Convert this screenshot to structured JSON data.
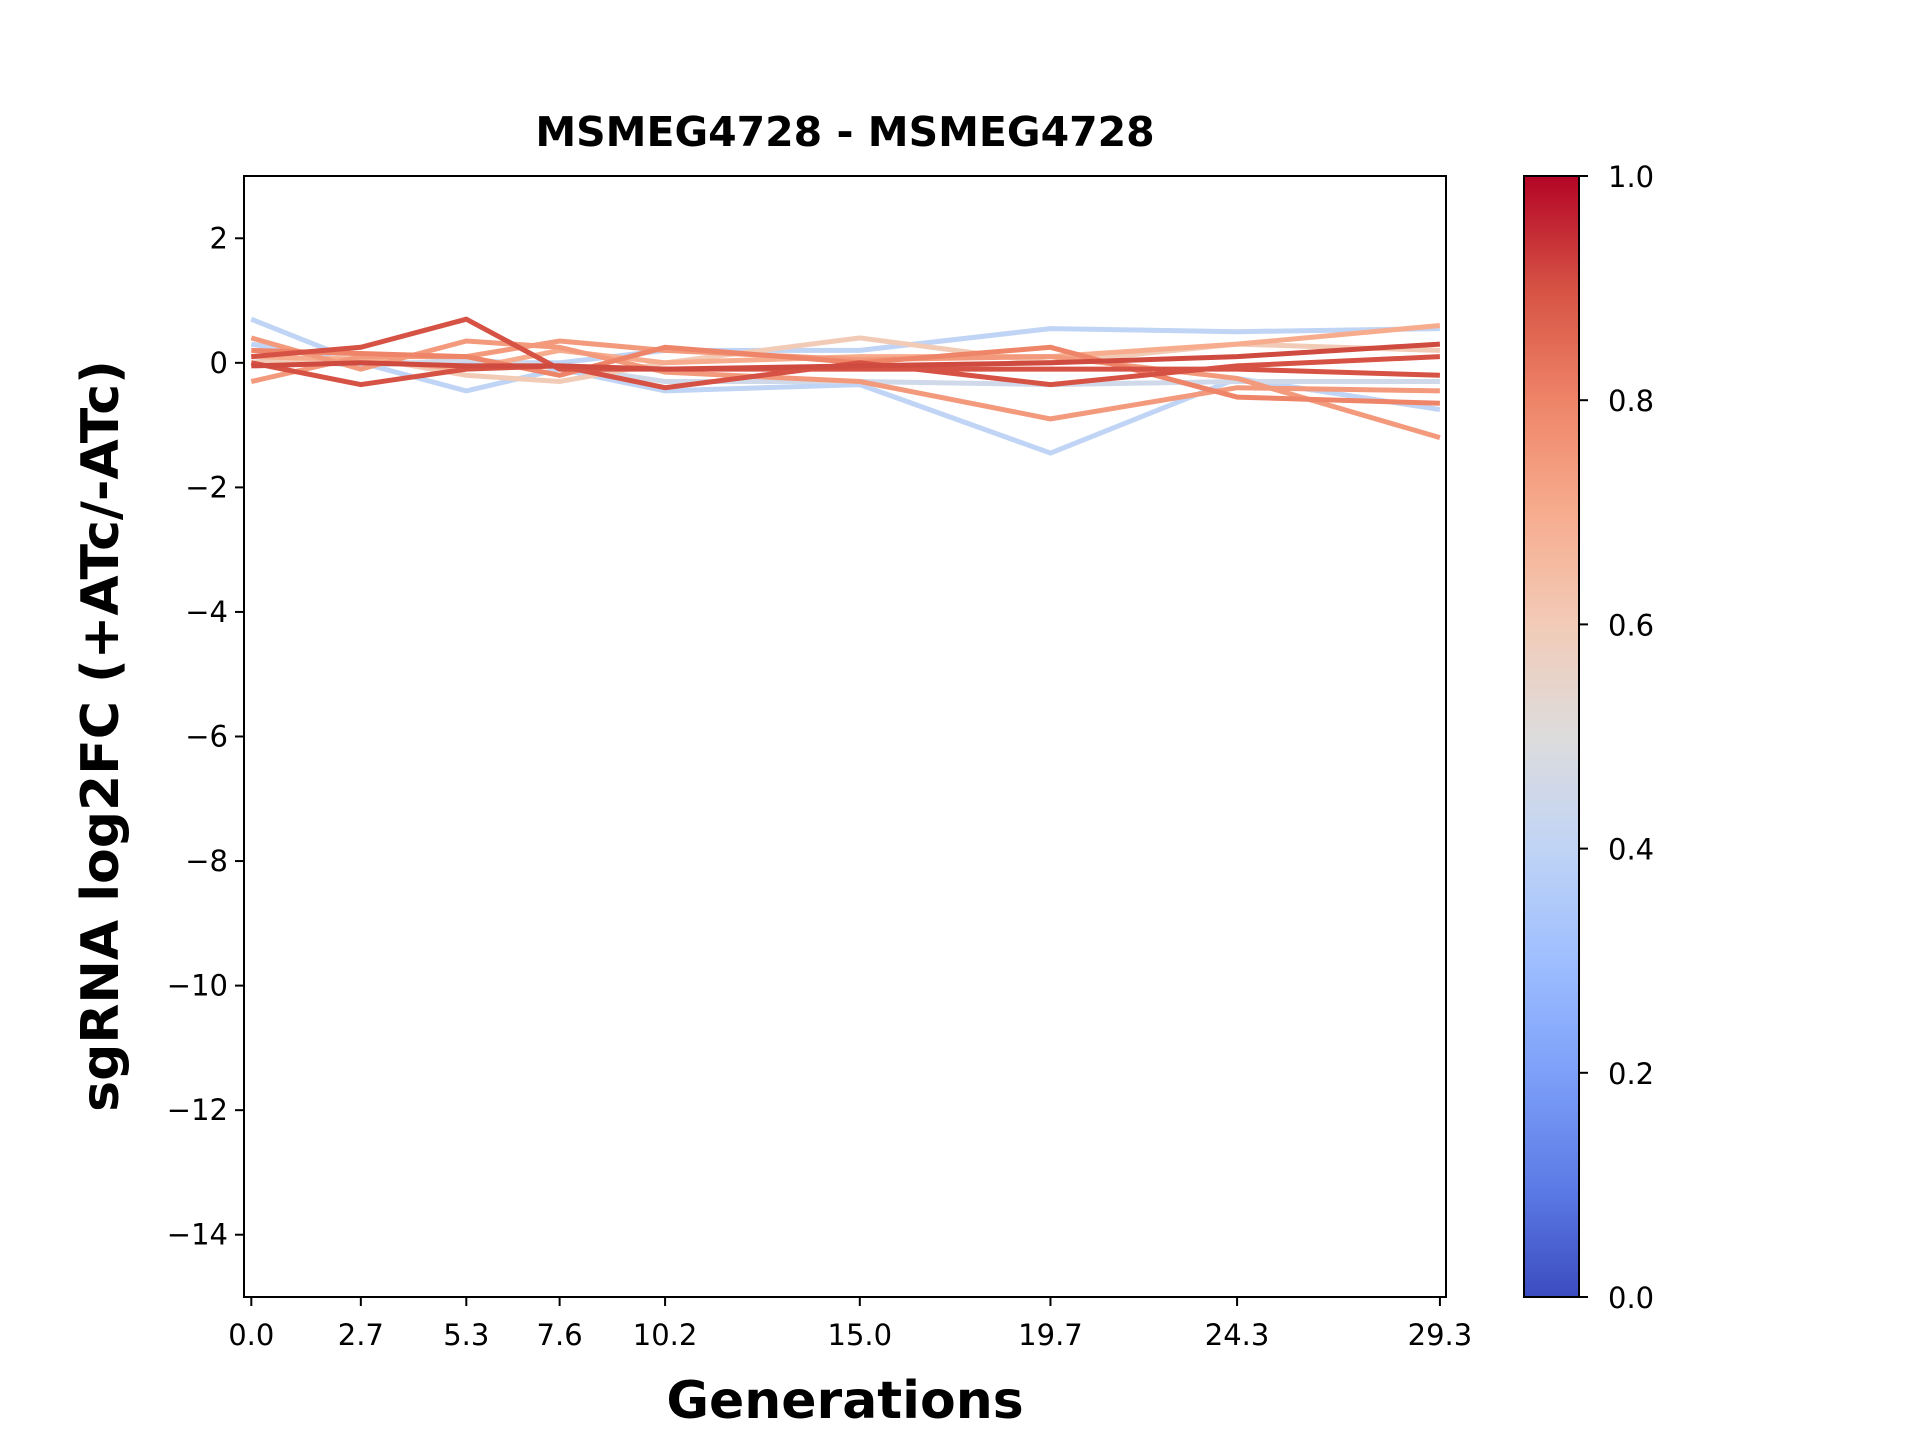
{
  "chart_data": {
    "type": "line",
    "title": "MSMEG4728 - MSMEG4728",
    "xlabel": "Generations",
    "ylabel": "sgRNA log2FC (+ATc/-ATc)",
    "x": [
      0.0,
      2.7,
      5.3,
      7.6,
      10.2,
      15.0,
      19.7,
      24.3,
      29.3
    ],
    "x_tick_labels": [
      "0.0",
      "2.7",
      "5.3",
      "7.6",
      "10.2",
      "15.0",
      "19.7",
      "24.3",
      "29.3"
    ],
    "xlim": [
      -0.18,
      29.45
    ],
    "ylim": [
      -15,
      3
    ],
    "y_ticks": [
      2,
      0,
      -2,
      -4,
      -6,
      -8,
      -10,
      -12,
      -14
    ],
    "y_tick_labels": [
      "2",
      "0",
      "−2",
      "−4",
      "−6",
      "−8",
      "−10",
      "−12",
      "−14"
    ],
    "grid": false,
    "colorbar": {
      "colormap": "coolwarm",
      "range": [
        0.0,
        1.0
      ],
      "tick_labels": [
        "0.0",
        "0.2",
        "0.4",
        "0.6",
        "0.8",
        "1.0"
      ],
      "stops": [
        "#3b4cc0",
        "#5d7ce6",
        "#7da0f9",
        "#9ebeff",
        "#c0d4f5",
        "#dddcdc",
        "#f2cbb7",
        "#f7ac8e",
        "#ee8468",
        "#d65244",
        "#b40426"
      ]
    },
    "series": [
      {
        "color_value": 0.4,
        "color": "#c0d4f5",
        "values": [
          0.7,
          0.0,
          -0.45,
          -0.1,
          -0.45,
          -0.35,
          -1.45,
          -0.25,
          -0.75
        ]
      },
      {
        "color_value": 0.4,
        "color": "#c0d4f5",
        "values": [
          0.3,
          0.0,
          0.0,
          0.0,
          0.2,
          0.2,
          0.55,
          0.5,
          0.55
        ]
      },
      {
        "color_value": 0.45,
        "color": "#cfd9ea",
        "values": [
          0.1,
          -0.05,
          0.05,
          -0.05,
          -0.3,
          -0.3,
          -0.35,
          -0.3,
          -0.3
        ]
      },
      {
        "color_value": 0.6,
        "color": "#f2cbb7",
        "values": [
          0.0,
          0.1,
          -0.2,
          -0.3,
          0.0,
          0.4,
          0.0,
          0.3,
          0.2
        ]
      },
      {
        "color_value": 0.7,
        "color": "#f7ac8e",
        "values": [
          0.1,
          0.05,
          -0.1,
          0.2,
          0.0,
          0.1,
          0.1,
          0.3,
          0.6
        ]
      },
      {
        "color_value": 0.75,
        "color": "#f39a7d",
        "values": [
          0.4,
          -0.1,
          0.35,
          0.25,
          -0.15,
          -0.3,
          -0.9,
          -0.4,
          -0.45
        ]
      },
      {
        "color_value": 0.75,
        "color": "#f39a7d",
        "values": [
          -0.3,
          0.1,
          0.1,
          0.35,
          0.2,
          0.05,
          0.1,
          -0.25,
          -1.2
        ]
      },
      {
        "color_value": 0.8,
        "color": "#ee8468",
        "values": [
          0.2,
          0.15,
          0.1,
          -0.2,
          0.25,
          0.0,
          0.25,
          -0.55,
          -0.65
        ]
      },
      {
        "color_value": 0.9,
        "color": "#d65244",
        "values": [
          0.1,
          0.25,
          0.7,
          -0.1,
          -0.1,
          -0.1,
          -0.1,
          -0.1,
          -0.2
        ]
      },
      {
        "color_value": 0.9,
        "color": "#d65244",
        "values": [
          0.0,
          -0.35,
          -0.1,
          -0.05,
          -0.4,
          0.0,
          -0.35,
          -0.05,
          0.1
        ]
      },
      {
        "color_value": 0.92,
        "color": "#cf4a3f",
        "values": [
          -0.05,
          0.0,
          -0.05,
          -0.05,
          -0.1,
          -0.05,
          0.0,
          0.1,
          0.3
        ]
      }
    ]
  }
}
